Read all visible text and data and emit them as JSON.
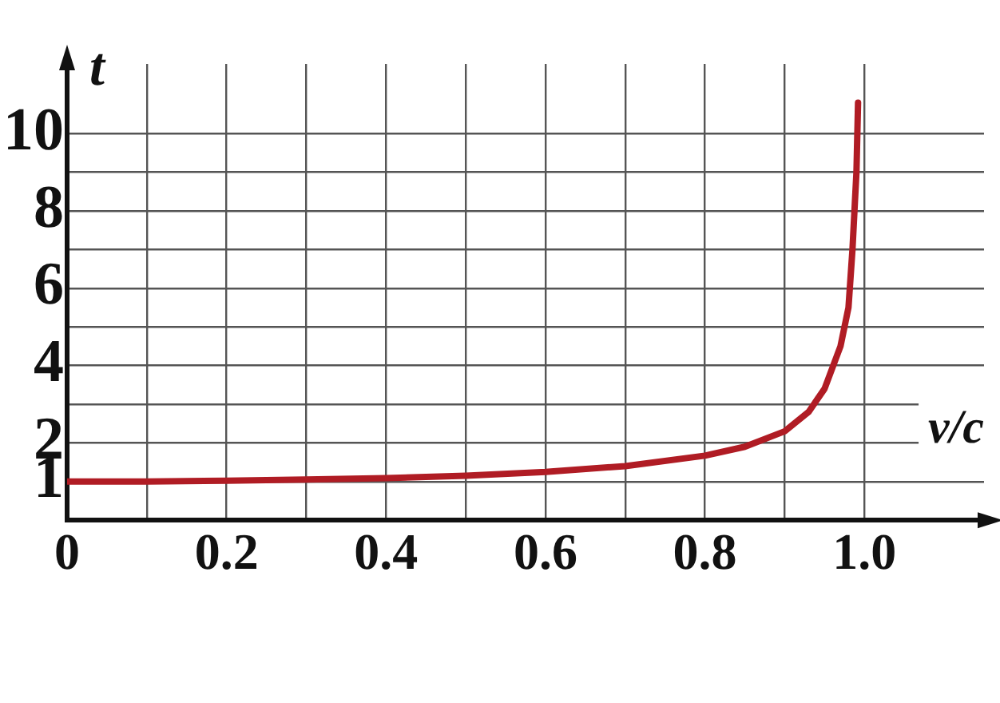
{
  "chart_data": {
    "type": "line",
    "xlabel": "v/c",
    "ylabel": "t",
    "x": [
      0,
      0.1,
      0.2,
      0.3,
      0.4,
      0.5,
      0.6,
      0.7,
      0.8,
      0.85,
      0.9,
      0.93,
      0.95,
      0.97,
      0.98,
      0.985,
      0.99,
      0.992
    ],
    "series": [
      {
        "color": "#b01c24",
        "values": [
          1.0,
          1.0,
          1.02,
          1.05,
          1.09,
          1.15,
          1.25,
          1.4,
          1.67,
          1.9,
          2.3,
          2.8,
          3.4,
          4.5,
          5.5,
          7,
          9,
          10.8
        ]
      }
    ],
    "xlim": [
      0,
      1.15
    ],
    "ylim": [
      0,
      11.8
    ],
    "xticks": [
      0,
      {
        "value": 0.1,
        "label": null
      },
      0.2,
      {
        "value": 0.3,
        "label": null
      },
      0.4,
      {
        "value": 0.5,
        "label": null
      },
      0.6,
      {
        "value": 0.7,
        "label": null
      },
      0.8,
      {
        "value": 0.9,
        "label": null
      },
      {
        "value": 1.0,
        "label": "1.0"
      }
    ],
    "yticks": [
      {
        "value": 1,
        "label": "1"
      },
      2,
      {
        "value": 3,
        "label": null
      },
      4,
      {
        "value": 5,
        "label": null
      },
      6,
      {
        "value": 7,
        "label": null
      },
      8,
      {
        "value": 9,
        "label": null
      },
      10
    ],
    "grid": true,
    "legend": false,
    "marker": "none",
    "line_style": "solid"
  }
}
